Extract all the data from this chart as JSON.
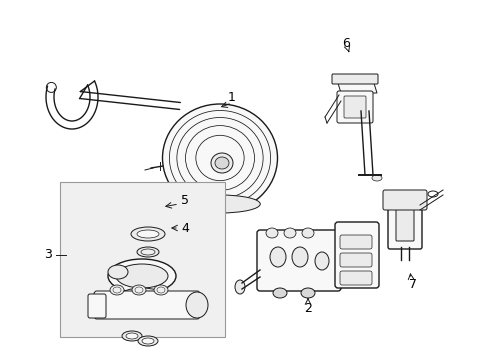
{
  "background_color": "#ffffff",
  "fig_width": 4.89,
  "fig_height": 3.6,
  "dpi": 100,
  "line_color": "#1a1a1a",
  "text_color": "#000000",
  "fill_light": "#f8f8f8",
  "fill_mid": "#ebebeb",
  "fill_dark": "#d8d8d8",
  "box_fill": "#eeeeee"
}
